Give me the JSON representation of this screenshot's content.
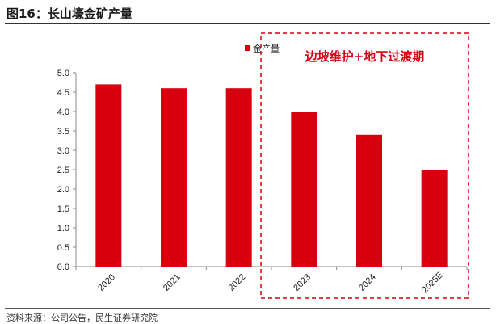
{
  "figure": {
    "title": "图16：长山壕金矿产量",
    "source": "资料来源：公司公告，民生证券研究院"
  },
  "chart_data": {
    "type": "bar",
    "categories": [
      "2020",
      "2021",
      "2022",
      "2023",
      "2024",
      "2025E"
    ],
    "series": [
      {
        "name": "金产量",
        "values": [
          4.7,
          4.6,
          4.6,
          4.0,
          3.4,
          2.5
        ]
      }
    ],
    "title": "",
    "xlabel": "",
    "ylabel": "",
    "ylim": [
      0,
      5
    ],
    "yticks": [
      "0.0",
      "0.5",
      "1.0",
      "1.5",
      "2.0",
      "2.5",
      "3.0",
      "3.5",
      "4.0",
      "4.5",
      "5.0"
    ],
    "grid": false,
    "legend_position": "top-right",
    "annotation": {
      "text": "边坡维护+地下过渡期",
      "range": [
        "2023",
        "2025E"
      ]
    },
    "colors": {
      "bar": "#d6000f",
      "annotation": "#d6000f",
      "axis": "#888888"
    }
  }
}
